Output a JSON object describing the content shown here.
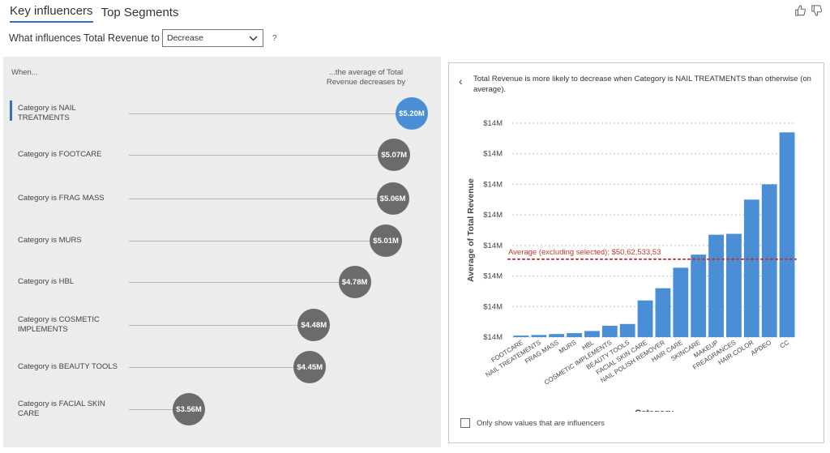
{
  "tabs": [
    {
      "label": "Key influencers"
    },
    {
      "label": "Top Segments"
    }
  ],
  "question": {
    "label": "What influences Total Revenue to",
    "selected": "Decrease",
    "help": "?"
  },
  "left": {
    "col_when": "When...",
    "col_avg": "...the average of Total Revenue decreases by",
    "influencers": [
      {
        "label": "Category is NAIL TREATMENTS",
        "value": "$5.20M",
        "num": 5.2,
        "selected": true
      },
      {
        "label": "Category is FOOTCARE",
        "value": "$5.07M",
        "num": 5.07,
        "selected": false
      },
      {
        "label": "Category is FRAG MASS",
        "value": "$5.06M",
        "num": 5.06,
        "selected": false
      },
      {
        "label": "Category is MURS",
        "value": "$5.01M",
        "num": 5.01,
        "selected": false
      },
      {
        "label": "Category is HBL",
        "value": "$4.78M",
        "num": 4.78,
        "selected": false
      },
      {
        "label": "Category is COSMETIC IMPLEMENTS",
        "value": "$4.48M",
        "num": 4.48,
        "selected": false
      },
      {
        "label": "Category is BEAUTY TOOLS",
        "value": "$4.45M",
        "num": 4.45,
        "selected": false
      },
      {
        "label": "Category is FACIAL SKIN CARE",
        "value": "$3.56M",
        "num": 3.56,
        "selected": false
      }
    ]
  },
  "right": {
    "title": "Total Revenue is more likely to decrease when Category is NAIL TREATMENTS than otherwise (on average).",
    "checkbox_label": "Only show values that are influencers"
  },
  "chart_data": {
    "type": "bar",
    "ylabel": "Average of Total Revenue",
    "xlabel": "Category",
    "ytick_labels": [
      "$14M",
      "$14M",
      "$14M",
      "$14M",
      "$14M",
      "$14M",
      "$14M",
      "$14M"
    ],
    "ylim": [
      0,
      7
    ],
    "categories": [
      "FOOTCARE",
      "NAIL TREATEMENTS",
      "FRAG MASS",
      "MURS",
      "HBL",
      "COSMETIC IMPLEMENTS",
      "BEAUTY TOOLS",
      "FACIAL SKIN CARE",
      "NAIL POLISH REMOVER",
      "HAIR CARE",
      "SKINCARE",
      "MAKEUP",
      "FREAGRANCES",
      "HAIR COLOR",
      "APDEO",
      "CC"
    ],
    "values": [
      0.05,
      0.07,
      0.1,
      0.13,
      0.2,
      0.37,
      0.43,
      1.2,
      1.6,
      2.27,
      2.7,
      3.35,
      3.38,
      4.5,
      5.0,
      6.7
    ],
    "average_line": {
      "value": 2.55,
      "label": "Average (excluding selected): $50,62,533,53"
    },
    "colors": {
      "bar": "#4a8fd6",
      "avg": "#c0392b",
      "grid": "#bdbdbd"
    }
  }
}
